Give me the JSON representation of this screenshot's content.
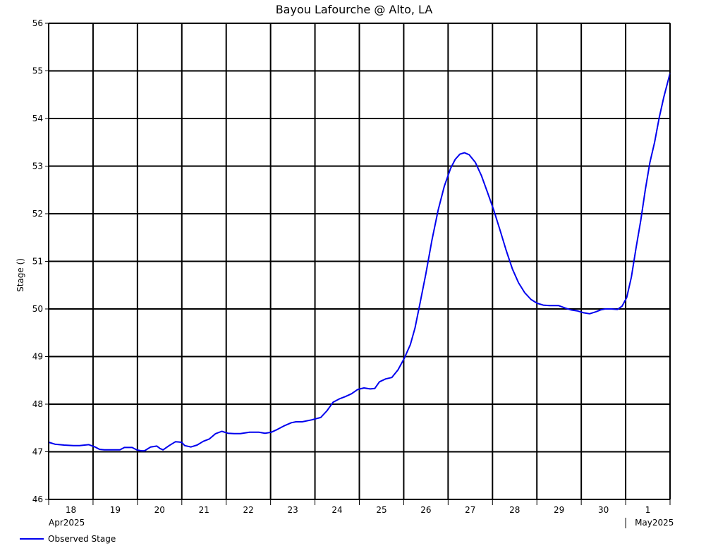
{
  "chart_data": {
    "type": "line",
    "title": "Bayou Lafourche @ Alto, LA",
    "xlabel": "",
    "ylabel": "Stage ()",
    "ylim": [
      46,
      56
    ],
    "yticks": [
      46,
      47,
      48,
      49,
      50,
      51,
      52,
      53,
      54,
      55,
      56
    ],
    "xrange_days": [
      0,
      14
    ],
    "day_ticks": [
      "18",
      "19",
      "20",
      "21",
      "22",
      "23",
      "24",
      "25",
      "26",
      "27",
      "28",
      "29",
      "30",
      "1"
    ],
    "month_labels": [
      {
        "label": "Apr2025",
        "day": 0
      },
      {
        "label": "May2025",
        "day": 13
      }
    ],
    "grid": true,
    "legend_position": "bottom-left",
    "series": [
      {
        "name": "Observed Stage",
        "color": "#0000ee",
        "points": [
          [
            0.0,
            47.2
          ],
          [
            0.2,
            47.16
          ],
          [
            0.5,
            47.14
          ],
          [
            0.8,
            47.13
          ],
          [
            1.0,
            47.13
          ],
          [
            1.3,
            47.15
          ],
          [
            1.5,
            47.1
          ],
          [
            1.65,
            47.05
          ],
          [
            1.8,
            47.04
          ],
          [
            2.0,
            47.04
          ],
          [
            2.3,
            47.04
          ],
          [
            2.45,
            47.09
          ],
          [
            2.7,
            47.09
          ],
          [
            2.85,
            47.04
          ],
          [
            3.0,
            47.02
          ],
          [
            3.1,
            47.02
          ],
          [
            3.3,
            47.1
          ],
          [
            3.5,
            47.12
          ],
          [
            3.6,
            47.07
          ],
          [
            3.7,
            47.04
          ],
          [
            3.9,
            47.13
          ],
          [
            4.1,
            47.21
          ],
          [
            4.3,
            47.2
          ],
          [
            4.4,
            47.13
          ],
          [
            4.6,
            47.1
          ],
          [
            4.8,
            47.14
          ],
          [
            5.0,
            47.22
          ],
          [
            5.2,
            47.27
          ],
          [
            5.4,
            47.38
          ],
          [
            5.6,
            47.43
          ],
          [
            5.8,
            47.39
          ],
          [
            6.0,
            47.38
          ],
          [
            6.2,
            47.38
          ],
          [
            6.5,
            47.41
          ],
          [
            6.8,
            47.41
          ],
          [
            7.0,
            47.39
          ],
          [
            7.2,
            47.41
          ],
          [
            7.4,
            47.47
          ],
          [
            7.6,
            47.54
          ],
          [
            7.85,
            47.61
          ],
          [
            8.0,
            47.63
          ],
          [
            8.2,
            47.63
          ],
          [
            8.5,
            47.67
          ],
          [
            8.8,
            47.72
          ],
          [
            9.0,
            47.86
          ],
          [
            9.2,
            48.04
          ],
          [
            9.4,
            48.11
          ],
          [
            9.6,
            48.16
          ],
          [
            9.8,
            48.22
          ],
          [
            10.0,
            48.31
          ],
          [
            10.2,
            48.34
          ],
          [
            10.4,
            48.32
          ],
          [
            10.55,
            48.33
          ],
          [
            10.7,
            48.47
          ],
          [
            10.9,
            48.53
          ],
          [
            11.1,
            48.56
          ],
          [
            11.3,
            48.72
          ],
          [
            11.5,
            48.96
          ],
          [
            11.7,
            49.25
          ],
          [
            11.85,
            49.6
          ],
          [
            12.0,
            50.08
          ],
          [
            12.2,
            50.73
          ],
          [
            12.4,
            51.45
          ],
          [
            12.6,
            52.08
          ],
          [
            12.8,
            52.58
          ],
          [
            13.0,
            52.95
          ],
          [
            13.15,
            53.14
          ],
          [
            13.3,
            53.25
          ],
          [
            13.45,
            53.28
          ],
          [
            13.6,
            53.24
          ],
          [
            13.8,
            53.08
          ],
          [
            14.0,
            52.8
          ],
          [
            14.2,
            52.44
          ],
          [
            14.4,
            52.07
          ],
          [
            14.6,
            51.66
          ],
          [
            14.8,
            51.23
          ],
          [
            15.0,
            50.84
          ],
          [
            15.2,
            50.55
          ],
          [
            15.4,
            50.34
          ],
          [
            15.6,
            50.2
          ],
          [
            15.8,
            50.12
          ],
          [
            16.0,
            50.08
          ],
          [
            16.2,
            50.07
          ],
          [
            16.5,
            50.07
          ],
          [
            16.7,
            50.02
          ],
          [
            16.9,
            49.98
          ],
          [
            17.1,
            49.96
          ],
          [
            17.3,
            49.92
          ],
          [
            17.5,
            49.9
          ],
          [
            17.7,
            49.94
          ],
          [
            17.85,
            49.98
          ],
          [
            18.0,
            50.0
          ],
          [
            18.2,
            50.0
          ],
          [
            18.4,
            49.99
          ],
          [
            18.55,
            50.06
          ],
          [
            18.7,
            50.24
          ],
          [
            18.85,
            50.67
          ],
          [
            19.0,
            51.28
          ],
          [
            19.15,
            51.85
          ],
          [
            19.3,
            52.5
          ],
          [
            19.45,
            53.08
          ],
          [
            19.6,
            53.5
          ],
          [
            19.75,
            54.02
          ],
          [
            19.9,
            54.45
          ],
          [
            20.0,
            54.7
          ],
          [
            20.1,
            54.95
          ]
        ]
      }
    ]
  }
}
